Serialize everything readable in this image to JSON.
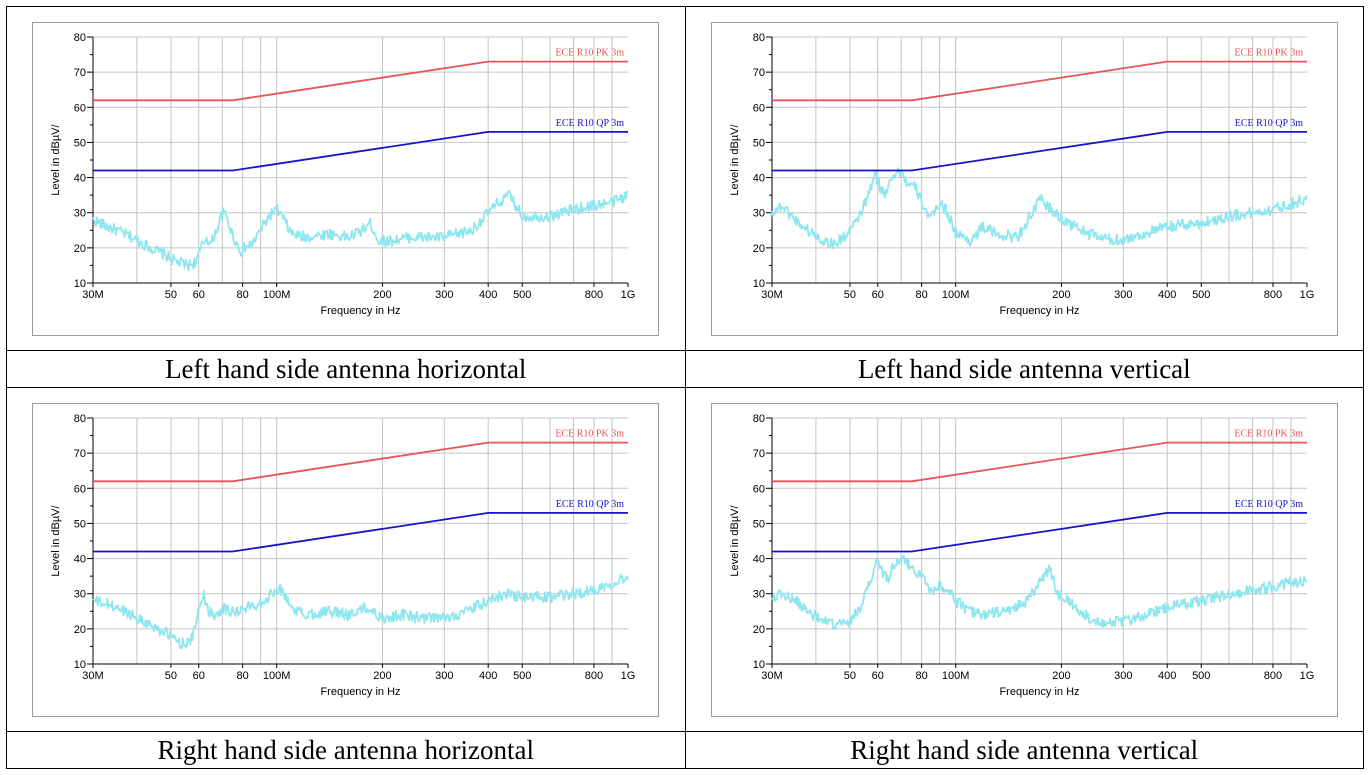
{
  "captions": [
    "Left hand side antenna horizontal",
    "Left hand side antenna vertical",
    "Right hand side antenna horizontal",
    "Right hand side antenna vertical"
  ],
  "colors": {
    "pk_limit": "#e8545a",
    "qp_limit": "#1414c8",
    "trace": "#8ee6ee",
    "grid": "#c4c4c4"
  },
  "chart_data": [
    {
      "type": "line",
      "xscale": "log",
      "grid": true,
      "xlabel": "Frequency in Hz",
      "ylabel": "Level in dBµV/",
      "xlim": [
        30000000,
        1000000000
      ],
      "ylim": [
        10,
        80
      ],
      "xticks": [
        {
          "v": 30000000,
          "label": "30M"
        },
        {
          "v": 50000000,
          "label": "50"
        },
        {
          "v": 60000000,
          "label": "60"
        },
        {
          "v": 80000000,
          "label": "80"
        },
        {
          "v": 100000000,
          "label": "100M"
        },
        {
          "v": 200000000,
          "label": "200"
        },
        {
          "v": 300000000,
          "label": "300"
        },
        {
          "v": 400000000,
          "label": "400"
        },
        {
          "v": 500000000,
          "label": "500"
        },
        {
          "v": 800000000,
          "label": "800"
        },
        {
          "v": 1000000000,
          "label": "1G"
        }
      ],
      "yticks": [
        10,
        20,
        30,
        40,
        50,
        60,
        70,
        80
      ],
      "series": [
        {
          "name": "ECE R10 PK 3m",
          "kind": "limit",
          "x": [
            30000000,
            75000000,
            400000000,
            1000000000
          ],
          "y": [
            62,
            62,
            73,
            73
          ]
        },
        {
          "name": "ECE R10 QP 3m",
          "kind": "limit",
          "x": [
            30000000,
            75000000,
            400000000,
            1000000000
          ],
          "y": [
            42,
            42,
            53,
            53
          ]
        },
        {
          "name": "",
          "kind": "trace",
          "x": [
            30000000,
            33000000,
            37000000,
            42000000,
            48000000,
            52000000,
            56000000,
            59000000,
            61000000,
            63000000,
            65000000,
            68000000,
            70000000,
            72000000,
            74000000,
            77000000,
            79000000,
            81000000,
            85000000,
            90000000,
            95000000,
            100000000,
            105000000,
            110000000,
            120000000,
            140000000,
            160000000,
            175000000,
            185000000,
            195000000,
            210000000,
            240000000,
            300000000,
            360000000,
            400000000,
            430000000,
            460000000,
            500000000,
            600000000,
            700000000,
            800000000,
            900000000,
            1000000000
          ],
          "y": [
            28,
            26,
            24,
            21,
            18,
            16,
            15,
            16,
            20,
            23,
            21,
            26,
            30,
            29,
            25,
            21,
            19,
            20,
            21,
            25,
            29,
            31,
            28,
            24,
            23,
            24,
            23,
            25,
            27,
            22,
            22,
            23,
            23,
            25,
            30,
            33,
            35,
            29,
            29,
            31,
            32,
            33,
            35
          ]
        }
      ]
    },
    {
      "type": "line",
      "xscale": "log",
      "grid": true,
      "xlabel": "Frequency in Hz",
      "ylabel": "Level in dBµV/",
      "xlim": [
        30000000,
        1000000000
      ],
      "ylim": [
        10,
        80
      ],
      "xticks": [
        {
          "v": 30000000,
          "label": "30M"
        },
        {
          "v": 50000000,
          "label": "50"
        },
        {
          "v": 60000000,
          "label": "60"
        },
        {
          "v": 80000000,
          "label": "80"
        },
        {
          "v": 100000000,
          "label": "100M"
        },
        {
          "v": 200000000,
          "label": "200"
        },
        {
          "v": 300000000,
          "label": "300"
        },
        {
          "v": 400000000,
          "label": "400"
        },
        {
          "v": 500000000,
          "label": "500"
        },
        {
          "v": 800000000,
          "label": "800"
        },
        {
          "v": 1000000000,
          "label": "1G"
        }
      ],
      "yticks": [
        10,
        20,
        30,
        40,
        50,
        60,
        70,
        80
      ],
      "series": [
        {
          "name": "ECE R10 PK 3m",
          "kind": "limit",
          "x": [
            30000000,
            75000000,
            400000000,
            1000000000
          ],
          "y": [
            62,
            62,
            73,
            73
          ]
        },
        {
          "name": "ECE R10 QP 3m",
          "kind": "limit",
          "x": [
            30000000,
            75000000,
            400000000,
            1000000000
          ],
          "y": [
            42,
            42,
            53,
            53
          ]
        },
        {
          "name": "",
          "kind": "trace",
          "x": [
            30000000,
            32000000,
            35000000,
            38000000,
            42000000,
            45000000,
            48000000,
            52000000,
            56000000,
            59000000,
            61000000,
            63000000,
            65000000,
            67000000,
            70000000,
            73000000,
            77000000,
            80000000,
            85000000,
            90000000,
            95000000,
            100000000,
            110000000,
            120000000,
            130000000,
            150000000,
            165000000,
            175000000,
            190000000,
            210000000,
            240000000,
            280000000,
            320000000,
            400000000,
            500000000,
            600000000,
            700000000,
            800000000,
            1000000000
          ],
          "y": [
            30,
            32,
            28,
            25,
            22,
            21,
            23,
            27,
            34,
            41,
            37,
            35,
            40,
            41,
            42,
            38,
            37,
            33,
            28,
            33,
            30,
            24,
            22,
            26,
            24,
            23,
            30,
            34,
            30,
            27,
            24,
            22,
            23,
            26,
            27,
            29,
            30,
            31,
            34
          ]
        }
      ]
    },
    {
      "type": "line",
      "xscale": "log",
      "grid": true,
      "xlabel": "Frequency in Hz",
      "ylabel": "Level in dBµV/",
      "xlim": [
        30000000,
        1000000000
      ],
      "ylim": [
        10,
        80
      ],
      "xticks": [
        {
          "v": 30000000,
          "label": "30M"
        },
        {
          "v": 50000000,
          "label": "50"
        },
        {
          "v": 60000000,
          "label": "60"
        },
        {
          "v": 80000000,
          "label": "80"
        },
        {
          "v": 100000000,
          "label": "100M"
        },
        {
          "v": 200000000,
          "label": "200"
        },
        {
          "v": 300000000,
          "label": "300"
        },
        {
          "v": 400000000,
          "label": "400"
        },
        {
          "v": 500000000,
          "label": "500"
        },
        {
          "v": 800000000,
          "label": "800"
        },
        {
          "v": 1000000000,
          "label": "1G"
        }
      ],
      "yticks": [
        10,
        20,
        30,
        40,
        50,
        60,
        70,
        80
      ],
      "series": [
        {
          "name": "ECE R10 PK 3m",
          "kind": "limit",
          "x": [
            30000000,
            75000000,
            400000000,
            1000000000
          ],
          "y": [
            62,
            62,
            73,
            73
          ]
        },
        {
          "name": "ECE R10 QP 3m",
          "kind": "limit",
          "x": [
            30000000,
            75000000,
            400000000,
            1000000000
          ],
          "y": [
            42,
            42,
            53,
            53
          ]
        },
        {
          "name": "",
          "kind": "trace",
          "x": [
            30000000,
            33000000,
            37000000,
            42000000,
            46000000,
            50000000,
            53000000,
            56000000,
            58000000,
            60000000,
            62000000,
            64000000,
            67000000,
            70000000,
            74000000,
            78000000,
            82000000,
            88000000,
            95000000,
            100000000,
            105000000,
            110000000,
            120000000,
            140000000,
            160000000,
            180000000,
            200000000,
            230000000,
            260000000,
            300000000,
            350000000,
            400000000,
            450000000,
            500000000,
            600000000,
            700000000,
            800000000,
            1000000000
          ],
          "y": [
            28,
            27,
            25,
            22,
            20,
            18,
            16,
            16,
            18,
            26,
            30,
            25,
            24,
            26,
            25,
            25,
            26,
            27,
            29,
            32,
            30,
            26,
            24,
            25,
            24,
            26,
            23,
            24,
            23,
            23,
            25,
            28,
            30,
            29,
            29,
            30,
            31,
            35
          ]
        }
      ]
    },
    {
      "type": "line",
      "xscale": "log",
      "grid": true,
      "xlabel": "Frequency in Hz",
      "ylabel": "Level in dBµV/",
      "xlim": [
        30000000,
        1000000000
      ],
      "ylim": [
        10,
        80
      ],
      "xticks": [
        {
          "v": 30000000,
          "label": "30M"
        },
        {
          "v": 50000000,
          "label": "50"
        },
        {
          "v": 60000000,
          "label": "60"
        },
        {
          "v": 80000000,
          "label": "80"
        },
        {
          "v": 100000000,
          "label": "100M"
        },
        {
          "v": 200000000,
          "label": "200"
        },
        {
          "v": 300000000,
          "label": "300"
        },
        {
          "v": 400000000,
          "label": "400"
        },
        {
          "v": 500000000,
          "label": "500"
        },
        {
          "v": 800000000,
          "label": "800"
        },
        {
          "v": 1000000000,
          "label": "1G"
        }
      ],
      "yticks": [
        10,
        20,
        30,
        40,
        50,
        60,
        70,
        80
      ],
      "series": [
        {
          "name": "ECE R10 PK 3m",
          "kind": "limit",
          "x": [
            30000000,
            75000000,
            400000000,
            1000000000
          ],
          "y": [
            62,
            62,
            73,
            73
          ]
        },
        {
          "name": "ECE R10 QP 3m",
          "kind": "limit",
          "x": [
            30000000,
            75000000,
            400000000,
            1000000000
          ],
          "y": [
            42,
            42,
            53,
            53
          ]
        },
        {
          "name": "",
          "kind": "trace",
          "x": [
            30000000,
            32000000,
            35000000,
            38000000,
            42000000,
            46000000,
            50000000,
            54000000,
            57000000,
            60000000,
            62000000,
            64000000,
            66000000,
            70000000,
            74000000,
            78000000,
            82000000,
            86000000,
            90000000,
            95000000,
            100000000,
            110000000,
            120000000,
            140000000,
            160000000,
            175000000,
            185000000,
            195000000,
            210000000,
            230000000,
            260000000,
            300000000,
            350000000,
            400000000,
            500000000,
            600000000,
            700000000,
            800000000,
            1000000000
          ],
          "y": [
            29,
            30,
            28,
            25,
            22,
            21,
            22,
            27,
            33,
            40,
            36,
            34,
            38,
            40,
            38,
            36,
            34,
            30,
            33,
            31,
            28,
            25,
            24,
            25,
            28,
            34,
            37,
            30,
            28,
            24,
            22,
            22,
            24,
            26,
            28,
            30,
            31,
            32,
            34
          ]
        }
      ]
    }
  ]
}
